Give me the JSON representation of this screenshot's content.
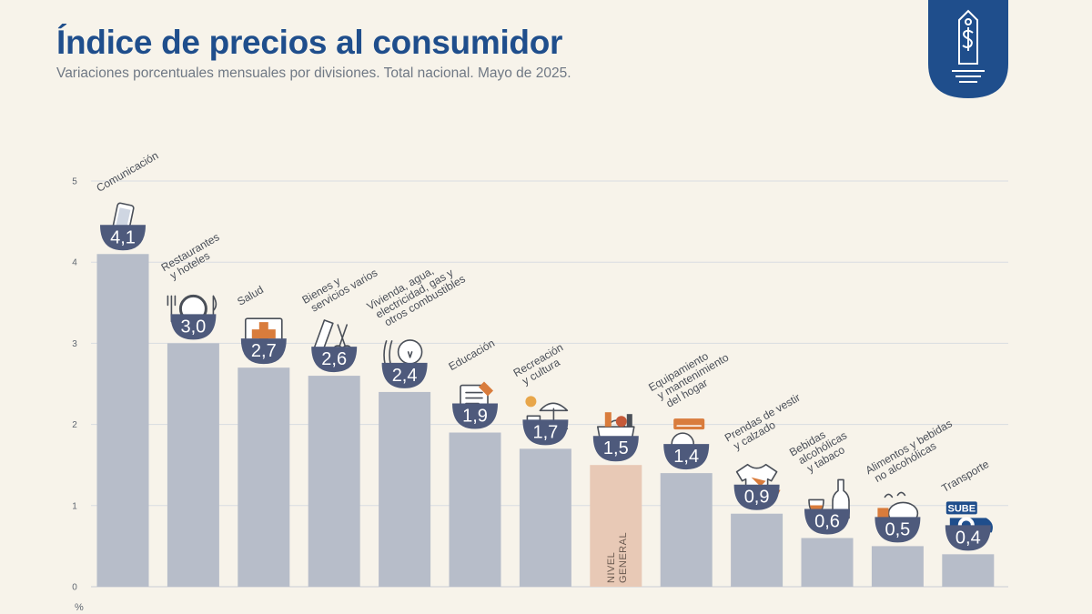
{
  "header": {
    "title": "Índice de precios al consumidor",
    "subtitle": "Variaciones porcentuales mensuales por divisiones. Total nacional. Mayo de 2025."
  },
  "colors": {
    "title": "#1f4e8c",
    "bar": "#b7bdc9",
    "bar_highlight": "#e8c9b6",
    "badge": "#4e5a7c",
    "badge_logo": "#1f4e8c",
    "icon_accent": "#d97c3c"
  },
  "chart_data": {
    "type": "bar",
    "title": "Índice de precios al consumidor",
    "subtitle": "Variaciones porcentuales mensuales por divisiones. Total nacional. Mayo de 2025.",
    "ylabel": "%",
    "ylim": [
      0,
      5
    ],
    "yticks": [
      0,
      1,
      2,
      3,
      4,
      5
    ],
    "grid": true,
    "categories": [
      "Comunicación",
      "Restaurantes y hoteles",
      "Salud",
      "Bienes y servicios varios",
      "Vivienda, agua, electricidad, gas y otros combustibles",
      "Educación",
      "Recreación y cultura",
      "Nivel general",
      "Equipamiento y mantenimiento del hogar",
      "Prendas de vestir y calzado",
      "Bebidas alcohólicas y tabaco",
      "Alimentos y bebidas no alcohólicas",
      "Transporte"
    ],
    "category_lines": [
      [
        "Comunicación"
      ],
      [
        "Restaurantes",
        "y hoteles"
      ],
      [
        "Salud"
      ],
      [
        "Bienes y",
        "servicios varios"
      ],
      [
        "Vivienda, agua,",
        "electricidad, gas y",
        "otros combustibles"
      ],
      [
        "Educación"
      ],
      [
        "Recreación",
        "y cultura"
      ],
      [
        "NIVEL",
        "GENERAL"
      ],
      [
        "Equipamiento",
        "y mantenimiento",
        "del hogar"
      ],
      [
        "Prendas de vestir",
        "y calzado"
      ],
      [
        "Bebidas",
        "alcohólicas",
        "y tabaco"
      ],
      [
        "Alimentos y bebidas",
        "no alcohólicas"
      ],
      [
        "Transporte"
      ]
    ],
    "values": [
      4.1,
      3.0,
      2.7,
      2.6,
      2.4,
      1.9,
      1.7,
      1.5,
      1.4,
      0.9,
      0.6,
      0.5,
      0.4
    ],
    "value_labels": [
      "4,1",
      "3,0",
      "2,7",
      "2,6",
      "2,4",
      "1,9",
      "1,7",
      "1,5",
      "1,4",
      "0,9",
      "0,6",
      "0,5",
      "0,4"
    ],
    "highlight": "Nivel general",
    "icons": [
      "phone-icon",
      "plate-cutlery-icon",
      "medical-cross-icon",
      "comb-scissors-icon",
      "lightbulb-icon",
      "book-pencil-icon",
      "beach-umbrella-icon",
      "shopping-bag-icon",
      "air-conditioner-icon",
      "tshirt-icon",
      "wine-bottle-icon",
      "chicken-food-icon",
      "sube-card-icon"
    ]
  }
}
